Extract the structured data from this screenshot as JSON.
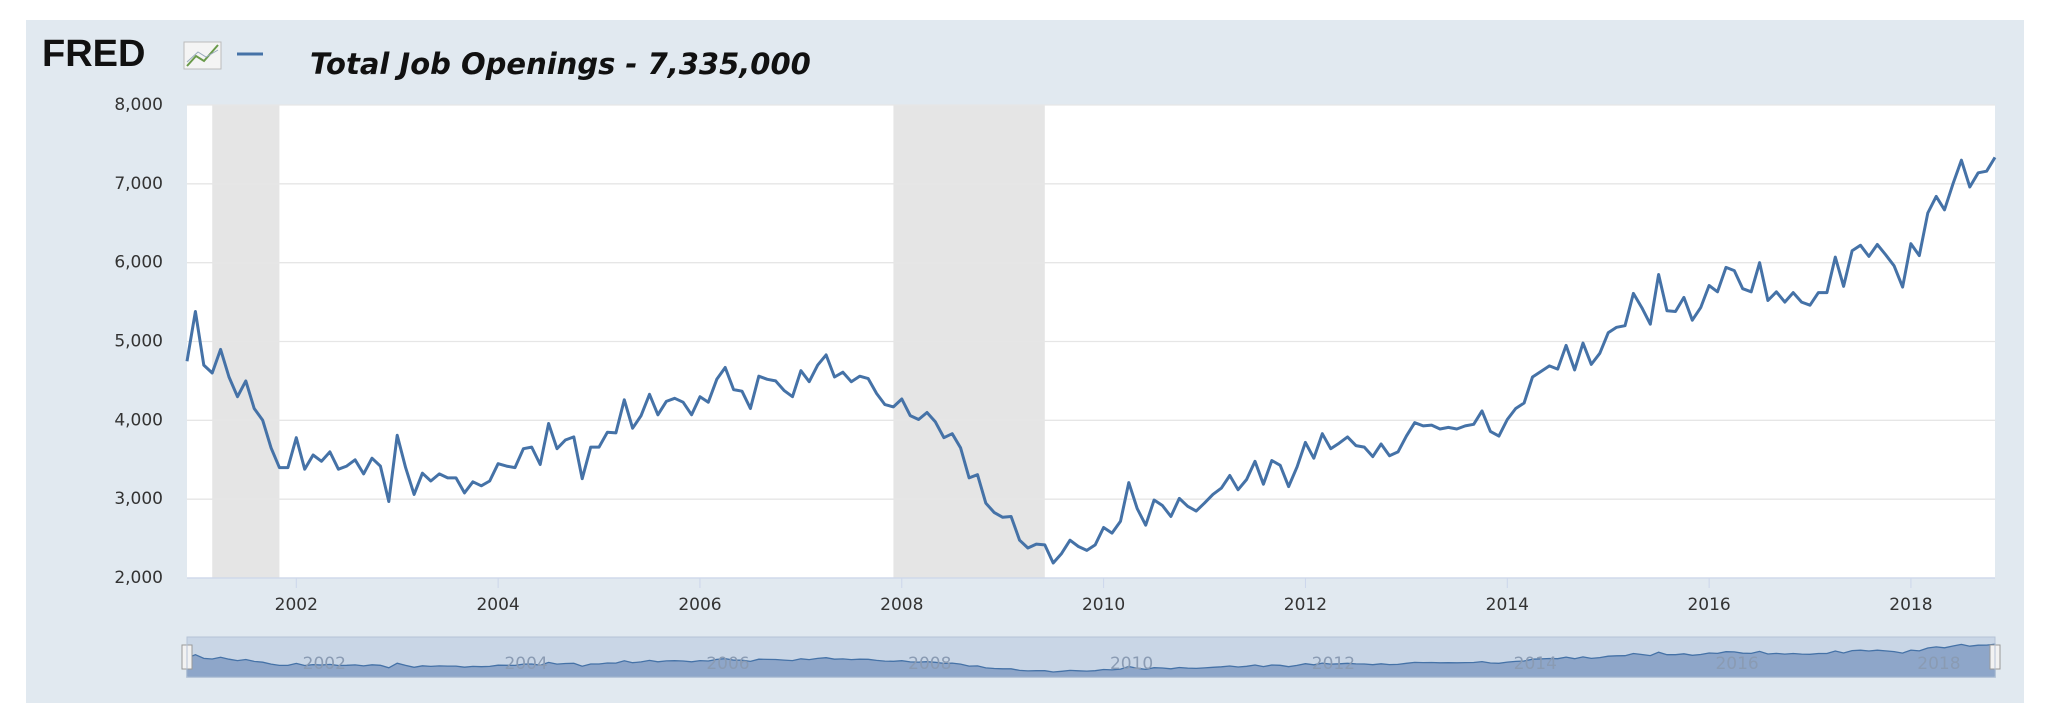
{
  "chart_data": {
    "type": "line",
    "logo": "FRED",
    "title": "Total Job Openings - 7,335,000",
    "xlim": [
      2000.917,
      2018.833
    ],
    "xticks": [
      2002,
      2004,
      2006,
      2008,
      2010,
      2012,
      2014,
      2016,
      2018
    ],
    "ylim": [
      2000,
      8000
    ],
    "yticks": [
      {
        "value": 2000,
        "label": "2,000"
      },
      {
        "value": 3000,
        "label": "3,000"
      },
      {
        "value": 4000,
        "label": "4,000"
      },
      {
        "value": 5000,
        "label": "5,000"
      },
      {
        "value": 6000,
        "label": "6,000"
      },
      {
        "value": 7000,
        "label": "7,000"
      },
      {
        "value": 8000,
        "label": "8,000"
      }
    ],
    "grid": true,
    "shaded_ranges": [
      [
        2001.167,
        2001.833
      ],
      [
        2007.917,
        2009.417
      ]
    ],
    "x": [
      2000.917,
      2001,
      2001.083,
      2001.167,
      2001.25,
      2001.333,
      2001.417,
      2001.5,
      2001.583,
      2001.667,
      2001.75,
      2001.833,
      2001.917,
      2002,
      2002.083,
      2002.167,
      2002.25,
      2002.333,
      2002.417,
      2002.5,
      2002.583,
      2002.667,
      2002.75,
      2002.833,
      2002.917,
      2003,
      2003.083,
      2003.167,
      2003.25,
      2003.333,
      2003.417,
      2003.5,
      2003.583,
      2003.667,
      2003.75,
      2003.833,
      2003.917,
      2004,
      2004.083,
      2004.167,
      2004.25,
      2004.333,
      2004.417,
      2004.5,
      2004.583,
      2004.667,
      2004.75,
      2004.833,
      2004.917,
      2005,
      2005.083,
      2005.167,
      2005.25,
      2005.333,
      2005.417,
      2005.5,
      2005.583,
      2005.667,
      2005.75,
      2005.833,
      2005.917,
      2006,
      2006.083,
      2006.167,
      2006.25,
      2006.333,
      2006.417,
      2006.5,
      2006.583,
      2006.667,
      2006.75,
      2006.833,
      2006.917,
      2007,
      2007.083,
      2007.167,
      2007.25,
      2007.333,
      2007.417,
      2007.5,
      2007.583,
      2007.667,
      2007.75,
      2007.833,
      2007.917,
      2008,
      2008.083,
      2008.167,
      2008.25,
      2008.333,
      2008.417,
      2008.5,
      2008.583,
      2008.667,
      2008.75,
      2008.833,
      2008.917,
      2009,
      2009.083,
      2009.167,
      2009.25,
      2009.333,
      2009.417,
      2009.5,
      2009.583,
      2009.667,
      2009.75,
      2009.833,
      2009.917,
      2010,
      2010.083,
      2010.167,
      2010.25,
      2010.333,
      2010.417,
      2010.5,
      2010.583,
      2010.667,
      2010.75,
      2010.833,
      2010.917,
      2011,
      2011.083,
      2011.167,
      2011.25,
      2011.333,
      2011.417,
      2011.5,
      2011.583,
      2011.667,
      2011.75,
      2011.833,
      2011.917,
      2012,
      2012.083,
      2012.167,
      2012.25,
      2012.333,
      2012.417,
      2012.5,
      2012.583,
      2012.667,
      2012.75,
      2012.833,
      2012.917,
      2013,
      2013.083,
      2013.167,
      2013.25,
      2013.333,
      2013.417,
      2013.5,
      2013.583,
      2013.667,
      2013.75,
      2013.833,
      2013.917,
      2014,
      2014.083,
      2014.167,
      2014.25,
      2014.333,
      2014.417,
      2014.5,
      2014.583,
      2014.667,
      2014.75,
      2014.833,
      2014.917,
      2015,
      2015.083,
      2015.167,
      2015.25,
      2015.333,
      2015.417,
      2015.5,
      2015.583,
      2015.667,
      2015.75,
      2015.833,
      2015.917,
      2016,
      2016.083,
      2016.167,
      2016.25,
      2016.333,
      2016.417,
      2016.5,
      2016.583,
      2016.667,
      2016.75,
      2016.833,
      2016.917,
      2017,
      2017.083,
      2017.167,
      2017.25,
      2017.333,
      2017.417,
      2017.5,
      2017.583,
      2017.667,
      2017.75,
      2017.833,
      2017.917,
      2018,
      2018.083,
      2018.167,
      2018.25,
      2018.333,
      2018.417,
      2018.5,
      2018.583,
      2018.667,
      2018.75,
      2018.833
    ],
    "series": [
      {
        "name": "Total Job Openings",
        "color": "#4572a7",
        "values": [
          4750,
          5380,
          4700,
          4600,
          4900,
          4550,
          4300,
          4500,
          4150,
          4000,
          3650,
          3400,
          3400,
          3780,
          3380,
          3560,
          3480,
          3600,
          3380,
          3420,
          3500,
          3320,
          3520,
          3420,
          2970,
          3810,
          3400,
          3060,
          3330,
          3230,
          3320,
          3270,
          3270,
          3080,
          3220,
          3170,
          3230,
          3450,
          3420,
          3400,
          3640,
          3660,
          3440,
          3960,
          3640,
          3750,
          3790,
          3260,
          3660,
          3660,
          3850,
          3840,
          4260,
          3900,
          4060,
          4330,
          4070,
          4240,
          4280,
          4230,
          4070,
          4300,
          4230,
          4520,
          4670,
          4390,
          4370,
          4150,
          4560,
          4520,
          4500,
          4380,
          4300,
          4630,
          4490,
          4700,
          4830,
          4550,
          4610,
          4490,
          4560,
          4530,
          4340,
          4200,
          4170,
          4270,
          4060,
          4010,
          4100,
          3980,
          3780,
          3830,
          3650,
          3270,
          3310,
          2950,
          2830,
          2770,
          2780,
          2480,
          2380,
          2430,
          2420,
          2190,
          2310,
          2480,
          2400,
          2350,
          2420,
          2640,
          2570,
          2720,
          3210,
          2880,
          2670,
          2990,
          2920,
          2780,
          3010,
          2910,
          2850,
          2950,
          3060,
          3140,
          3300,
          3120,
          3250,
          3480,
          3190,
          3490,
          3430,
          3160,
          3410,
          3720,
          3520,
          3830,
          3640,
          3710,
          3790,
          3680,
          3660,
          3540,
          3700,
          3550,
          3600,
          3800,
          3970,
          3930,
          3940,
          3890,
          3910,
          3890,
          3930,
          3950,
          4120,
          3860,
          3800,
          4010,
          4150,
          4220,
          4550,
          4620,
          4690,
          4650,
          4950,
          4640,
          4980,
          4710,
          4850,
          5110,
          5180,
          5200,
          5610,
          5430,
          5220,
          5850,
          5390,
          5380,
          5560,
          5270,
          5430,
          5710,
          5630,
          5940,
          5900,
          5670,
          5630,
          6000,
          5520,
          5630,
          5500,
          5620,
          5500,
          5460,
          5620,
          5620,
          6070,
          5700,
          6150,
          6220,
          6080,
          6230,
          6100,
          5960,
          5690,
          6240,
          6090,
          6630,
          6840,
          6670,
          7000,
          7300,
          6960,
          7140,
          7160,
          7335
        ]
      }
    ]
  }
}
